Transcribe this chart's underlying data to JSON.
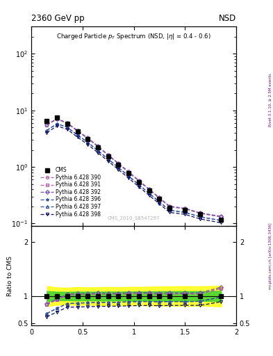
{
  "title_top": "2360 GeV pp",
  "title_top_right": "NSD",
  "watermark": "CMS_2010_S8547297",
  "right_label_top": "Rivet 3.1.10, ≥ 2.5M events",
  "right_label_bot": "mcplots.cern.ch [arXiv:1306.3436]",
  "ylabel_ratio": "Ratio to CMS",
  "cms_x": [
    0.15,
    0.25,
    0.35,
    0.45,
    0.55,
    0.65,
    0.75,
    0.85,
    0.95,
    1.05,
    1.15,
    1.25,
    1.35,
    1.5,
    1.65,
    1.85
  ],
  "cms_y": [
    6.5,
    7.5,
    5.8,
    4.2,
    3.1,
    2.2,
    1.55,
    1.1,
    0.77,
    0.54,
    0.38,
    0.27,
    0.19,
    0.175,
    0.145,
    0.115
  ],
  "cms_ey": [
    0.6,
    0.6,
    0.45,
    0.35,
    0.25,
    0.18,
    0.13,
    0.09,
    0.065,
    0.046,
    0.033,
    0.024,
    0.017,
    0.016,
    0.013,
    0.011
  ],
  "p390_x": [
    0.15,
    0.25,
    0.35,
    0.45,
    0.55,
    0.65,
    0.75,
    0.85,
    0.95,
    1.05,
    1.15,
    1.25,
    1.35,
    1.5,
    1.65,
    1.85
  ],
  "p390_y": [
    5.5,
    7.0,
    5.9,
    4.3,
    3.18,
    2.28,
    1.6,
    1.14,
    0.8,
    0.565,
    0.397,
    0.28,
    0.198,
    0.182,
    0.151,
    0.131
  ],
  "p390_color": "#b060a0",
  "p390_marker": "o",
  "p391_x": [
    0.15,
    0.25,
    0.35,
    0.45,
    0.55,
    0.65,
    0.75,
    0.85,
    0.95,
    1.05,
    1.15,
    1.25,
    1.35,
    1.5,
    1.65,
    1.85
  ],
  "p391_y": [
    5.5,
    7.0,
    5.9,
    4.3,
    3.18,
    2.28,
    1.6,
    1.14,
    0.8,
    0.565,
    0.397,
    0.28,
    0.198,
    0.182,
    0.151,
    0.131
  ],
  "p391_color": "#b060a0",
  "p391_marker": "s",
  "p392_x": [
    0.15,
    0.25,
    0.35,
    0.45,
    0.55,
    0.65,
    0.75,
    0.85,
    0.95,
    1.05,
    1.15,
    1.25,
    1.35,
    1.5,
    1.65,
    1.85
  ],
  "p392_y": [
    5.6,
    7.1,
    6.0,
    4.4,
    3.25,
    2.33,
    1.63,
    1.16,
    0.82,
    0.575,
    0.404,
    0.285,
    0.202,
    0.185,
    0.154,
    0.134
  ],
  "p392_color": "#7050b0",
  "p392_marker": "D",
  "p396_x": [
    0.15,
    0.25,
    0.35,
    0.45,
    0.55,
    0.65,
    0.75,
    0.85,
    0.95,
    1.05,
    1.15,
    1.25,
    1.35,
    1.5,
    1.65,
    1.85
  ],
  "p396_y": [
    4.4,
    5.8,
    5.0,
    3.65,
    2.72,
    1.94,
    1.37,
    0.975,
    0.688,
    0.485,
    0.342,
    0.241,
    0.171,
    0.157,
    0.131,
    0.113
  ],
  "p396_color": "#3050a0",
  "p396_marker": "*",
  "p397_x": [
    0.15,
    0.25,
    0.35,
    0.45,
    0.55,
    0.65,
    0.75,
    0.85,
    0.95,
    1.05,
    1.15,
    1.25,
    1.35,
    1.5,
    1.65,
    1.85
  ],
  "p397_y": [
    4.4,
    5.8,
    5.0,
    3.65,
    2.72,
    1.94,
    1.37,
    0.975,
    0.688,
    0.485,
    0.342,
    0.241,
    0.171,
    0.157,
    0.131,
    0.113
  ],
  "p397_color": "#3050a0",
  "p397_marker": "^",
  "p398_x": [
    0.15,
    0.25,
    0.35,
    0.45,
    0.55,
    0.65,
    0.75,
    0.85,
    0.95,
    1.05,
    1.15,
    1.25,
    1.35,
    1.5,
    1.65,
    1.85
  ],
  "p398_y": [
    4.0,
    5.3,
    4.6,
    3.35,
    2.49,
    1.78,
    1.26,
    0.895,
    0.631,
    0.445,
    0.314,
    0.222,
    0.157,
    0.145,
    0.12,
    0.103
  ],
  "p398_color": "#101060",
  "p398_marker": "v",
  "xlim": [
    0.0,
    2.0
  ],
  "ylim_main": [
    0.09,
    300
  ],
  "ylim_ratio": [
    0.45,
    2.3
  ],
  "ratio_yticks": [
    0.5,
    1.0,
    2.0
  ]
}
